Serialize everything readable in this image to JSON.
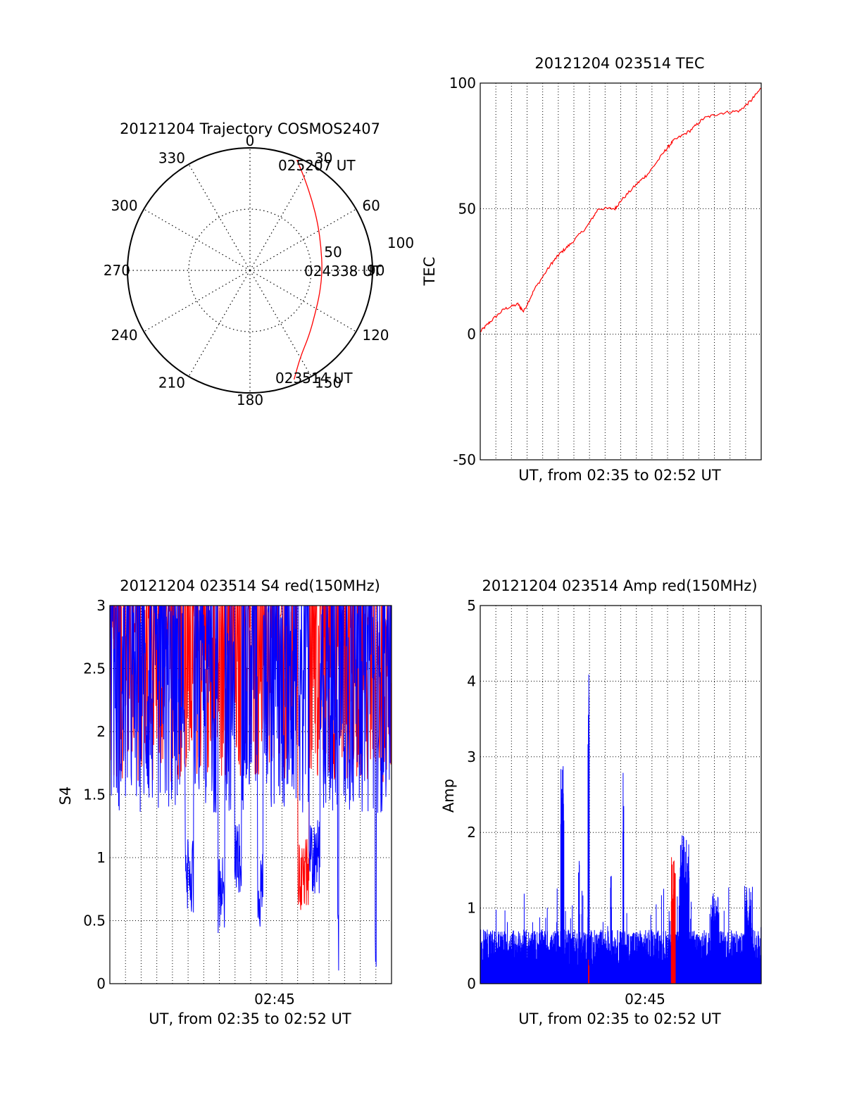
{
  "chart_data": [
    {
      "type": "polar",
      "title": "20121204 Trajectory COSMOS2407",
      "angle_labels": [
        "0",
        "30",
        "60",
        "90",
        "120",
        "150",
        "180",
        "210",
        "240",
        "270",
        "300",
        "330"
      ],
      "radial_labels": [
        "50",
        "100"
      ],
      "rlim": [
        0,
        100
      ],
      "series": [
        {
          "color": "#ff0000",
          "points": [
            {
              "az": 158,
              "r": 96
            },
            {
              "az": 150,
              "r": 82
            },
            {
              "az": 138,
              "r": 72
            },
            {
              "az": 124,
              "r": 64
            },
            {
              "az": 108,
              "r": 60
            },
            {
              "az": 90,
              "r": 59
            },
            {
              "az": 72,
              "r": 61
            },
            {
              "az": 56,
              "r": 67
            },
            {
              "az": 42,
              "r": 76
            },
            {
              "az": 31,
              "r": 87
            },
            {
              "az": 23,
              "r": 98
            }
          ]
        }
      ],
      "annotations": [
        "025207 UT",
        "024338 UT",
        "023514 UT"
      ]
    },
    {
      "type": "line",
      "title": "20121204 023514 TEC",
      "xlabel": "UT, from 02:35 to 02:52 UT",
      "ylabel": "TEC",
      "xlim": [
        "02:35:14",
        "02:52:07"
      ],
      "ylim": [
        -50,
        100
      ],
      "yticks": [
        "100",
        "50",
        "0",
        "-50"
      ],
      "grid": true,
      "series": [
        {
          "color": "#ff0000",
          "x": [
            "02:35:14",
            "02:35:50",
            "02:36:40",
            "02:37:30",
            "02:37:50",
            "02:38:30",
            "02:39:30",
            "02:40:00",
            "02:40:40",
            "02:41:40",
            "02:42:20",
            "02:43:20",
            "02:43:40",
            "02:44:40",
            "02:45:20",
            "02:46:20",
            "02:46:50",
            "02:47:50",
            "02:48:40",
            "02:49:40",
            "02:50:50",
            "02:51:30",
            "02:52:07"
          ],
          "values": [
            1,
            5,
            10,
            12,
            9,
            18,
            28,
            32,
            36,
            43,
            50,
            50,
            53,
            60,
            64,
            73,
            77,
            81,
            86,
            88,
            89,
            93,
            98
          ]
        }
      ]
    },
    {
      "type": "line",
      "title": "20121204 023514 S4 red(150MHz)",
      "xlabel": "UT, from 02:35 to 02:52 UT",
      "ylabel": "S4",
      "xlim": [
        "02:35:14",
        "02:52:07"
      ],
      "ylim": [
        0,
        3
      ],
      "xticks": [
        "02:45"
      ],
      "yticks": [
        "3",
        "2.5",
        "2",
        "1.5",
        "1",
        "0.5",
        "0"
      ],
      "grid": true,
      "series": [
        {
          "name": "red",
          "color": "#ff0000",
          "base": 2.45,
          "noise": 0.85,
          "dips": [
            {
              "x": "02:46:50",
              "min": 0.55,
              "width_s": 40
            }
          ]
        },
        {
          "name": "blue",
          "color": "#0000ff",
          "base": 2.25,
          "noise": 0.9,
          "dips": [
            {
              "x": "02:40:00",
              "min": 0.55,
              "width_s": 30
            },
            {
              "x": "02:41:55",
              "min": 0.4,
              "width_s": 25
            },
            {
              "x": "02:42:55",
              "min": 0.7,
              "width_s": 25
            },
            {
              "x": "02:44:15",
              "min": 0.45,
              "width_s": 20
            },
            {
              "x": "02:47:30",
              "min": 0.7,
              "width_s": 40
            },
            {
              "x": "02:48:55",
              "min": 0.0,
              "width_s": 5
            },
            {
              "x": "02:51:10",
              "min": 0.0,
              "width_s": 5
            }
          ]
        }
      ]
    },
    {
      "type": "area",
      "title": "20121204 023514 Amp red(150MHz)",
      "xlabel": "UT, from 02:35 to 02:52 UT",
      "ylabel": "Amp",
      "xlim": [
        "02:35:14",
        "02:52:07"
      ],
      "ylim": [
        0,
        5
      ],
      "xticks": [
        "02:45"
      ],
      "yticks": [
        "5",
        "4",
        "3",
        "2",
        "1",
        "0"
      ],
      "grid": true,
      "series": [
        {
          "name": "red",
          "color": "#ff0000",
          "base": 0.4,
          "bursts": [
            {
              "x": "02:46:50",
              "max": 1.7,
              "width_s": 15
            },
            {
              "x": "02:41:45",
              "max": 0.35,
              "width_s": 3
            }
          ]
        },
        {
          "name": "blue",
          "color": "#0000ff",
          "base": 0.55,
          "bursts": [
            {
              "x": "02:40:10",
              "max": 2.9,
              "width_s": 12
            },
            {
              "x": "02:41:45",
              "max": 4.2,
              "width_s": 5
            },
            {
              "x": "02:41:10",
              "max": 1.9,
              "width_s": 4
            },
            {
              "x": "02:43:05",
              "max": 1.8,
              "width_s": 4
            },
            {
              "x": "02:43:50",
              "max": 3.05,
              "width_s": 4
            },
            {
              "x": "02:47:30",
              "max": 2.0,
              "width_s": 35
            },
            {
              "x": "02:49:20",
              "max": 1.2,
              "width_s": 30
            },
            {
              "x": "02:51:20",
              "max": 1.3,
              "width_s": 25
            }
          ]
        }
      ]
    }
  ]
}
